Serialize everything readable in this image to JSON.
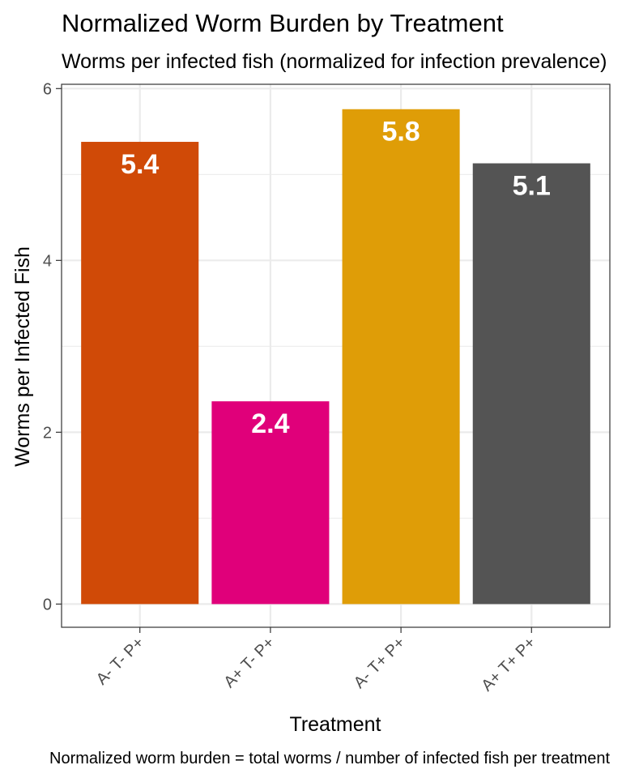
{
  "chart_data": {
    "type": "bar",
    "title": "Normalized Worm Burden by Treatment",
    "subtitle": "Worms per infected fish (normalized for infection prevalence)",
    "caption": "Normalized worm burden = total worms / number of infected fish per treatment",
    "xlabel": "Treatment",
    "ylabel": "Worms per Infected Fish",
    "categories": [
      "A- T- P+",
      "A+ T- P+",
      "A- T+ P+",
      "A+ T+ P+"
    ],
    "values": [
      5.38,
      2.36,
      5.76,
      5.13
    ],
    "value_labels": [
      "5.4",
      "2.4",
      "5.8",
      "5.1"
    ],
    "colors": [
      "#D04A07",
      "#E0007A",
      "#DF9D07",
      "#545454"
    ],
    "ylim": [
      -0.27,
      6.05
    ],
    "yticks": [
      0,
      2,
      4,
      6
    ],
    "grid": true,
    "legend": "none"
  }
}
